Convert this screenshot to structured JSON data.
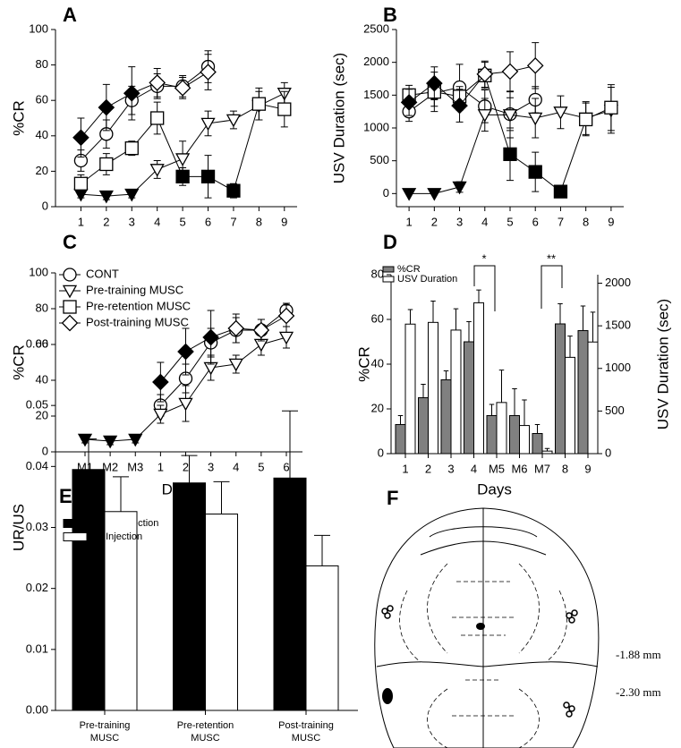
{
  "chart_data": [
    {
      "panel": "A",
      "type": "line",
      "ylabel": "%CR",
      "x": [
        1,
        2,
        3,
        4,
        5,
        6,
        7,
        8,
        9
      ],
      "xlim": [
        0,
        9.5
      ],
      "xticks": [
        1,
        2,
        3,
        4,
        5,
        6,
        7,
        8,
        9
      ],
      "ylim": [
        0,
        100
      ],
      "yticks": [
        0,
        20,
        40,
        60,
        80,
        100
      ],
      "series": [
        {
          "name": "CONT",
          "marker": "circle",
          "color": "#000000",
          "values": [
            26,
            41,
            60,
            68,
            68,
            79,
            null,
            null,
            null
          ],
          "errors": [
            6,
            8,
            8,
            7,
            6,
            9,
            null,
            null,
            null
          ]
        },
        {
          "name": "Pre-training MUSC",
          "marker": "triangle-down",
          "color": "#000000",
          "values": [
            7,
            6,
            7,
            21,
            27,
            47,
            49,
            57,
            64
          ],
          "errors": [
            2,
            2,
            2,
            5,
            10,
            7,
            5,
            8,
            6
          ],
          "filled": [
            true,
            true,
            true,
            false,
            false,
            false,
            false,
            false,
            false
          ]
        },
        {
          "name": "Pre-retention MUSC",
          "marker": "square",
          "color": "#000000",
          "values": [
            13,
            24,
            33,
            50,
            17,
            17,
            9,
            58,
            55
          ],
          "errors": [
            5,
            6,
            4,
            9,
            5,
            12,
            4,
            9,
            10
          ],
          "filled": [
            false,
            false,
            false,
            false,
            true,
            true,
            true,
            false,
            false
          ]
        },
        {
          "name": "Post-training MUSC",
          "marker": "diamond",
          "color": "#000000",
          "values": [
            39,
            56,
            64,
            70,
            67,
            76,
            null,
            null,
            null
          ],
          "errors": [
            11,
            13,
            15,
            8,
            6,
            10,
            null,
            null,
            null
          ],
          "filled": [
            true,
            true,
            true,
            false,
            false,
            false,
            false,
            false,
            false
          ]
        }
      ]
    },
    {
      "panel": "B",
      "type": "line",
      "ylabel": "USV Duration (sec)",
      "x": [
        1,
        2,
        3,
        4,
        5,
        6,
        7,
        8,
        9
      ],
      "xlim": [
        0.5,
        9.5
      ],
      "xticks": [
        1,
        2,
        3,
        4,
        5,
        6,
        7,
        8,
        9
      ],
      "ylim": [
        -200,
        2500
      ],
      "yticks": [
        0,
        500,
        1000,
        1500,
        2000,
        2500
      ],
      "series": [
        {
          "name": "CONT",
          "marker": "circle",
          "color": "#000000",
          "values": [
            1250,
            1530,
            1620,
            1330,
            1210,
            1430,
            null,
            null,
            null
          ],
          "errors": [
            150,
            200,
            350,
            250,
            250,
            200,
            null,
            null,
            null
          ]
        },
        {
          "name": "Pre-training MUSC",
          "marker": "triangle-down",
          "color": "#000000",
          "values": [
            0,
            0,
            100,
            1200,
            1200,
            1150,
            1240,
            1150,
            1270
          ],
          "errors": [
            0,
            0,
            80,
            250,
            350,
            300,
            250,
            250,
            350
          ],
          "filled": [
            true,
            true,
            true,
            false,
            false,
            false,
            false,
            false,
            false
          ]
        },
        {
          "name": "Pre-retention MUSC",
          "marker": "square",
          "color": "#000000",
          "values": [
            1500,
            1550,
            1480,
            1800,
            600,
            330,
            30,
            1130,
            1310
          ],
          "errors": [
            150,
            300,
            150,
            200,
            400,
            300,
            0,
            250,
            350
          ],
          "filled": [
            false,
            false,
            false,
            false,
            true,
            true,
            true,
            false,
            false
          ]
        },
        {
          "name": "Post-training MUSC",
          "marker": "diamond",
          "color": "#000000",
          "values": [
            1390,
            1680,
            1340,
            1820,
            1860,
            1950,
            null,
            null,
            null
          ],
          "errors": [
            200,
            250,
            250,
            200,
            300,
            350,
            null,
            null,
            null
          ],
          "filled": [
            true,
            true,
            true,
            false,
            false,
            false,
            false,
            false,
            false
          ]
        }
      ]
    },
    {
      "panel": "C",
      "type": "line",
      "ylabel": "%CR",
      "xlabel": "Days",
      "legend": "upper left",
      "categories": [
        "M1",
        "M2",
        "M3",
        "1",
        "2",
        "3",
        "4",
        "5",
        "6"
      ],
      "ylim": [
        0,
        100
      ],
      "yticks": [
        0,
        20,
        40,
        60,
        80,
        100
      ],
      "series": [
        {
          "name": "CONT",
          "marker": "circle",
          "color": "#000000",
          "values": [
            null,
            null,
            null,
            26,
            41,
            61,
            68,
            68,
            79
          ],
          "errors": [
            null,
            null,
            null,
            6,
            8,
            8,
            7,
            6,
            4
          ]
        },
        {
          "name": "Pre-training MUSC",
          "marker": "triangle-down",
          "color": "#000000",
          "values": [
            7,
            6,
            7,
            21,
            27,
            47,
            49,
            60,
            64
          ],
          "errors": [
            2,
            2,
            2,
            5,
            10,
            7,
            5,
            6,
            6
          ],
          "filled": [
            true,
            true,
            true,
            false,
            false,
            false,
            false,
            false,
            false
          ]
        },
        {
          "name": "Pre-retention MUSC",
          "marker": "square",
          "color": "#000000",
          "values": [
            null,
            null,
            null,
            null,
            null,
            null,
            null,
            null,
            null
          ]
        },
        {
          "name": "Post-training MUSC",
          "marker": "diamond",
          "color": "#000000",
          "values": [
            null,
            null,
            null,
            39,
            56,
            64,
            69,
            68,
            76
          ],
          "errors": [
            null,
            null,
            null,
            11,
            13,
            15,
            8,
            6,
            6
          ],
          "filled": [
            false,
            false,
            false,
            true,
            true,
            true,
            false,
            false,
            false
          ]
        }
      ]
    },
    {
      "panel": "D",
      "type": "bar",
      "ylabel": "%CR",
      "y2label": "USV Duration (sec)",
      "xlabel": "Days",
      "legend": "upper left",
      "categories": [
        "1",
        "2",
        "3",
        "4",
        "M5",
        "M6",
        "M7",
        "8",
        "9"
      ],
      "ylim": [
        0,
        80
      ],
      "yticks": [
        0,
        20,
        40,
        60,
        80
      ],
      "y2lim": [
        0,
        2100
      ],
      "y2ticks": [
        0,
        500,
        1000,
        1500,
        2000
      ],
      "annotations": [
        "*",
        "**"
      ],
      "series": [
        {
          "name": "%CR",
          "color": "#808080",
          "values": [
            13,
            25,
            33,
            50,
            17,
            17,
            9,
            58,
            55
          ],
          "errors": [
            4,
            6,
            4,
            9,
            5,
            12,
            4,
            9,
            11
          ]
        },
        {
          "name": "USV Duration",
          "color": "#ffffff",
          "axis": "y2",
          "values": [
            1520,
            1540,
            1450,
            1770,
            600,
            330,
            30,
            1130,
            1310
          ],
          "errors": [
            170,
            250,
            250,
            150,
            380,
            300,
            30,
            250,
            350
          ]
        }
      ]
    },
    {
      "panel": "E",
      "type": "bar",
      "ylabel": "UR/US",
      "legend": "upper left",
      "categories": [
        "Pre-training MUSC",
        "Pre-retention MUSC",
        "Post-training MUSC"
      ],
      "ylim": [
        0,
        0.06
      ],
      "yticks": [
        {
          "value": 0,
          "label": "0.00"
        },
        {
          "value": 0.01,
          "label": "0.01"
        },
        {
          "value": 0.02,
          "label": "0.02"
        },
        {
          "value": 0.03,
          "label": "0.03"
        },
        {
          "value": 0.04,
          "label": "0.04"
        },
        {
          "value": 0.05,
          "label": "0.05"
        },
        {
          "value": 0.06,
          "label": "0.06"
        }
      ],
      "series": [
        {
          "name": "MUSC Injection",
          "color": "#000000",
          "values": [
            0.0395,
            0.0373,
            0.0381
          ],
          "errors": [
            0.005,
            0.0045,
            0.011
          ]
        },
        {
          "name": "No Injection",
          "color": "#ffffff",
          "values": [
            0.0326,
            0.0322,
            0.0237
          ],
          "errors": [
            0.0057,
            0.0053,
            0.005
          ]
        }
      ]
    }
  ],
  "diagram": {
    "panel": "F",
    "levels": [
      "-1.88 mm",
      "-2.30 mm"
    ]
  }
}
